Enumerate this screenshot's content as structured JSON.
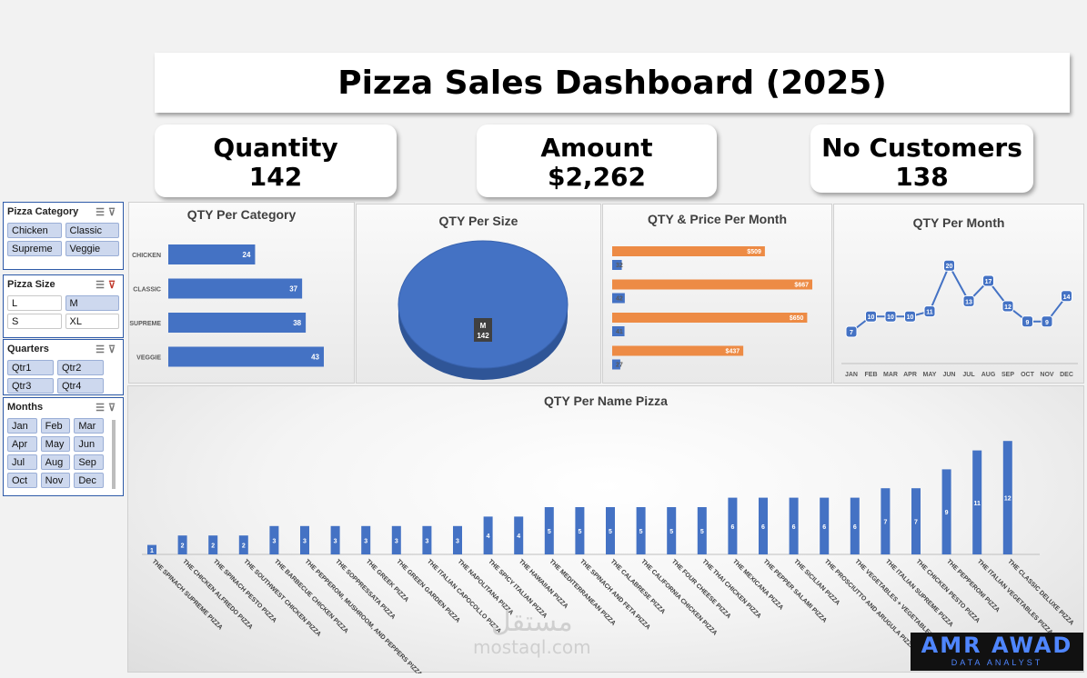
{
  "dashboard": {
    "title": "Pizza Sales Dashboard (2025)"
  },
  "kpis": {
    "quantity_label": "Quantity",
    "quantity_value": "142",
    "amount_label": "Amount",
    "amount_value": "$2,262",
    "customers_label": "No Customers",
    "customers_value": "138"
  },
  "slicers": {
    "category": {
      "title": "Pizza Category",
      "items": [
        "Chicken",
        "Classic",
        "Supreme",
        "Veggie"
      ],
      "selected": [
        true,
        true,
        true,
        true
      ]
    },
    "size": {
      "title": "Pizza Size",
      "items": [
        "L",
        "M",
        "S",
        "XL"
      ],
      "selected": [
        false,
        true,
        false,
        false
      ]
    },
    "quarters": {
      "title": "Quarters",
      "items": [
        "Qtr1",
        "Qtr2",
        "Qtr3",
        "Qtr4"
      ],
      "selected": [
        true,
        true,
        true,
        true
      ]
    },
    "months": {
      "title": "Months",
      "items": [
        "Jan",
        "Feb",
        "Mar",
        "Apr",
        "May",
        "Jun",
        "Jul",
        "Aug",
        "Sep",
        "Oct",
        "Nov",
        "Dec"
      ],
      "selected": [
        true,
        true,
        true,
        true,
        true,
        true,
        true,
        true,
        true,
        true,
        true,
        true
      ]
    }
  },
  "watermark": {
    "arabic": "مستقل",
    "site": "mostaql.com"
  },
  "logo": {
    "name": "AMR AWAD",
    "tagline": "DATA ANALYST"
  },
  "colors": {
    "blue": "#4472c4",
    "orange": "#ed8b45",
    "dark_blue": "#2f5597"
  },
  "chart_data": [
    {
      "id": "qty_per_category",
      "type": "bar",
      "title": "QTY Per Category",
      "categories": [
        "CHICKEN",
        "CLASSIC",
        "SUPREME",
        "VEGGIE"
      ],
      "values": [
        24,
        37,
        38,
        43
      ]
    },
    {
      "id": "qty_per_size",
      "type": "pie",
      "title": "QTY Per Size",
      "categories": [
        "M"
      ],
      "values": [
        142
      ]
    },
    {
      "id": "qty_price_per_month",
      "type": "bar",
      "title": "QTY & Price Per Month",
      "series": [
        {
          "values": [
            509,
            667,
            650,
            437
          ],
          "labels": [
            "$509",
            "$667",
            "$650",
            "$437"
          ],
          "color": "#ed8b45"
        },
        {
          "values": [
            32,
            42,
            41,
            27
          ],
          "labels": [
            "32",
            "42",
            "41",
            "27"
          ],
          "color": "#4472c4"
        }
      ]
    },
    {
      "id": "qty_per_month",
      "type": "line",
      "title": "QTY Per Month",
      "categories": [
        "JAN",
        "FEB",
        "MAR",
        "APR",
        "MAY",
        "JUN",
        "JUL",
        "AUG",
        "SEP",
        "OCT",
        "NOV",
        "DEC"
      ],
      "values": [
        7,
        10,
        10,
        10,
        11,
        20,
        13,
        17,
        12,
        9,
        9,
        14
      ]
    },
    {
      "id": "qty_per_name_pizza",
      "type": "bar",
      "title": "QTY Per Name Pizza",
      "categories": [
        "THE SPINACH SUPREME PIZZA",
        "THE CHICKEN ALFREDO PIZZA",
        "THE SPINACH PESTO PIZZA",
        "THE SOUTHWEST CHICKEN PIZZA",
        "THE BARBECUE CHICKEN PIZZA",
        "THE PEPPERONI, MUSHROOM, AND PEPPERS PIZZA",
        "THE SOPPRESSATA PIZZA",
        "THE GREEK PIZZA",
        "THE GREEN GARDEN PIZZA",
        "THE ITALIAN CAPOCOLLO PIZZA",
        "THE NAPOLITANA PIZZA",
        "THE SPICY ITALIAN PIZZA",
        "THE HAWAIIAN PIZZA",
        "THE MEDITERRANEAN PIZZA",
        "THE SPINACH AND FETA PIZZA",
        "THE CALABRESE PIZZA",
        "THE CALIFORNIA CHICKEN PIZZA",
        "THE FOUR CHEESE PIZZA",
        "THE THAI CHICKEN PIZZA",
        "THE MEXICANA PIZZA",
        "THE PEPPER SALAMI PIZZA",
        "THE SICILIAN PIZZA",
        "THE PROSCIUTTO AND ARUGULA PIZZA",
        "THE VEGETABLES + VEGETABLES PIZZA",
        "THE ITALIAN SUPREME PIZZA",
        "THE CHICKEN PESTO PIZZA",
        "THE PEPPERONI PIZZA",
        "THE ITALIAN VEGETABLES PIZZA",
        "THE CLASSIC DELUXE PIZZA"
      ],
      "values": [
        1,
        2,
        2,
        2,
        3,
        3,
        3,
        3,
        3,
        3,
        3,
        4,
        4,
        5,
        5,
        5,
        5,
        5,
        5,
        6,
        6,
        6,
        6,
        6,
        7,
        7,
        9,
        11,
        12
      ]
    }
  ]
}
